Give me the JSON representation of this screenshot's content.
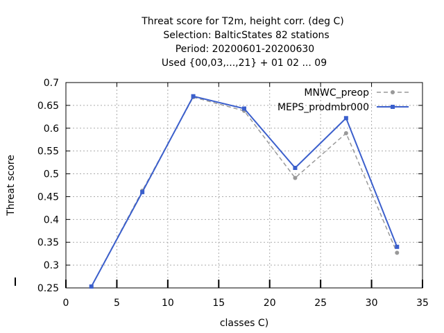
{
  "chart_data": {
    "type": "line",
    "title_lines": [
      "Threat score  for T2m, height corr. (deg C)",
      "Selection: BalticStates     82 stations",
      "Period: 20200601-20200630",
      "Used {00,03,...,21} + 01 02 ... 09"
    ],
    "xlabel": "classes C)",
    "ylabel": "Threat score",
    "xlim": [
      0,
      35
    ],
    "ylim": [
      0.25,
      0.7
    ],
    "xticks": [
      0,
      5,
      10,
      15,
      20,
      25,
      30,
      35
    ],
    "yticks": [
      0.25,
      0.3,
      0.35,
      0.4,
      0.45,
      0.5,
      0.55,
      0.6,
      0.65,
      0.7
    ],
    "xtick_labels": [
      "0",
      "5",
      "10",
      "15",
      "20",
      "25",
      "30",
      "35"
    ],
    "ytick_labels": [
      "0.25",
      "0.3",
      "0.35",
      "0.4",
      "0.45",
      "0.5",
      "0.55",
      "0.6",
      "0.65",
      "0.7"
    ],
    "grid": true,
    "legend_position": "top-right",
    "series": [
      {
        "name": "MNWC_preop",
        "color": "#999999",
        "dash": true,
        "marker": "circle",
        "x": [
          2.5,
          7.5,
          12.5,
          17.5,
          22.5,
          27.5,
          32.5
        ],
        "y": [
          0.253,
          0.463,
          0.668,
          0.638,
          0.491,
          0.589,
          0.327
        ]
      },
      {
        "name": "MEPS_prodmbr000",
        "color": "#3b5fcc",
        "dash": false,
        "marker": "square",
        "x": [
          2.5,
          7.5,
          12.5,
          17.5,
          22.5,
          27.5,
          32.5
        ],
        "y": [
          0.253,
          0.46,
          0.67,
          0.643,
          0.513,
          0.622,
          0.34
        ]
      }
    ]
  }
}
